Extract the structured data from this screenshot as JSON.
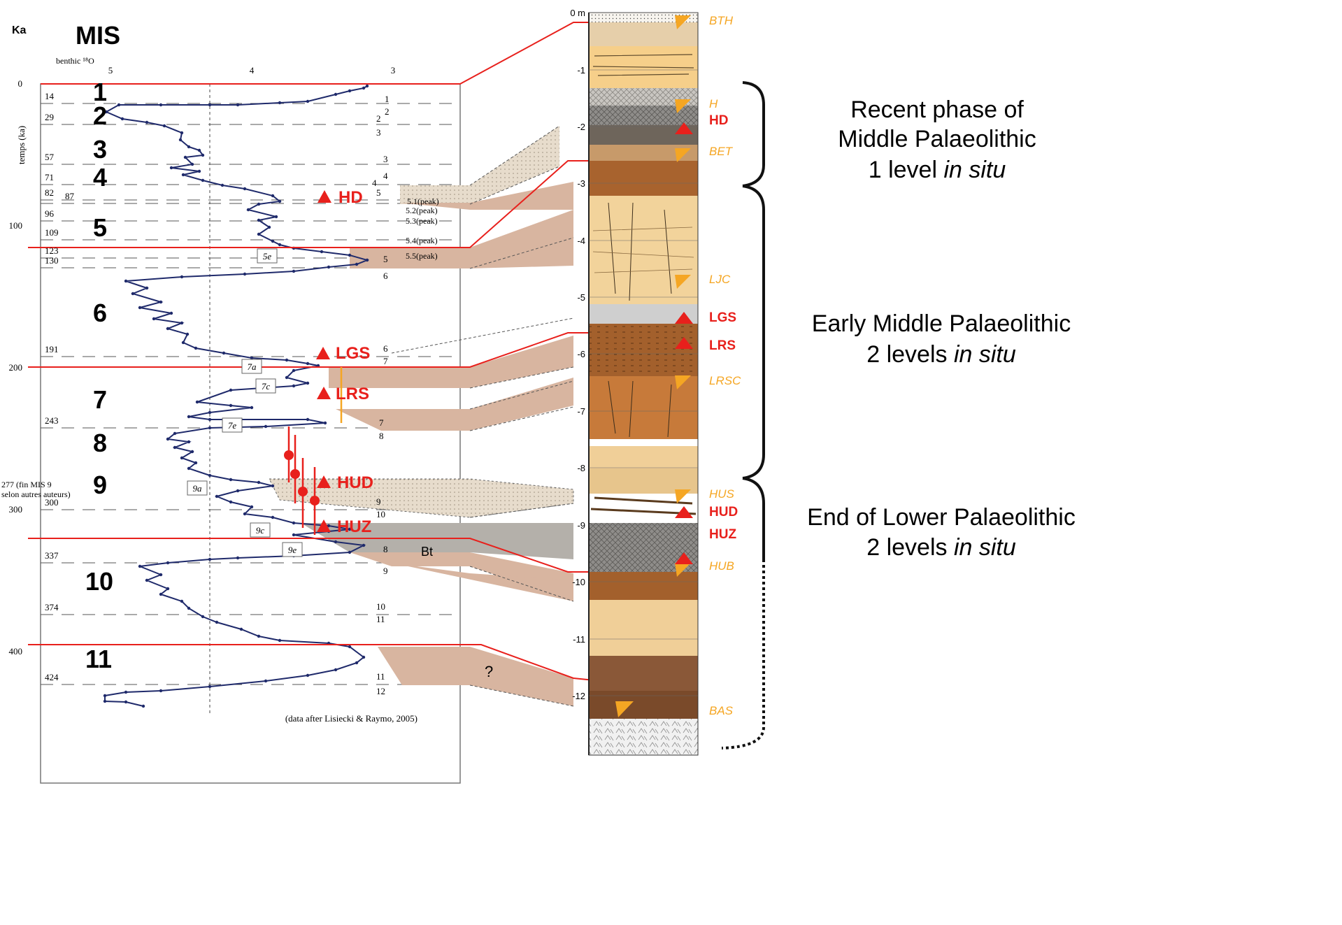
{
  "left_panel": {
    "ka_label": "Ka",
    "mis_title": "MIS",
    "axis_top_label": "benthic ¹⁸O",
    "top_ticks": [
      "5",
      "4",
      "3"
    ],
    "y_axis_label": "temps (ka)",
    "y_ticks": [
      "0",
      "100",
      "200",
      "300",
      "400"
    ],
    "credit": "(data after Lisiecki & Raymo, 2005)",
    "boundary_ages": [
      "14",
      "29",
      "57",
      "71",
      "82",
      "87",
      "96",
      "109",
      "123",
      "130",
      "191",
      "243",
      "300",
      "337",
      "374",
      "424"
    ],
    "boundary_note_line1": "277 (fin MIS 9",
    "boundary_note_line2": "selon autres auteurs)",
    "mis_stages": [
      "1",
      "2",
      "3",
      "4",
      "5",
      "6",
      "7",
      "8",
      "9",
      "10",
      "11"
    ],
    "right_stage_labels": [
      "1",
      "2",
      "2",
      "3",
      "3",
      "4",
      "4",
      "5",
      "5.1(peak)",
      "5.2(peak)",
      "5.3(peak)",
      "5.4(peak)",
      "5.5(peak)",
      "5",
      "6",
      "6",
      "7",
      "7",
      "8",
      "8",
      "9",
      "9",
      "10",
      "10",
      "11",
      "11",
      "12"
    ],
    "substages": [
      "5e",
      "7a",
      "7c",
      "7e",
      "9a",
      "9c",
      "9e"
    ],
    "markers": [
      "HD",
      "LGS",
      "LRS",
      "HUD",
      "HUZ"
    ],
    "bt_label": "Bt",
    "question_mark": "?"
  },
  "section": {
    "depth_ticks": [
      "0 m",
      "-1",
      "-2",
      "-3",
      "-4",
      "-5",
      "-6",
      "-7",
      "-8",
      "-9",
      "-10",
      "-11",
      "-12"
    ],
    "unit_labels_orange": [
      "BTH",
      "H",
      "BET",
      "LJC",
      "LRSC",
      "HUS",
      "HUB",
      "BAS"
    ],
    "unit_labels_red": [
      "HD",
      "LGS",
      "LRS",
      "HUD",
      "HUZ"
    ]
  },
  "phases": [
    {
      "line1": "Recent phase of",
      "line2": "Middle Palaeolithic",
      "line3_plain": "1 level ",
      "line3_italic": "in situ"
    },
    {
      "line1": "Early Middle Palaeolithic",
      "line2_plain": "2 levels ",
      "line2_italic": "in situ"
    },
    {
      "line1": "End of Lower Palaeolithic",
      "line2_plain": "2 levels ",
      "line2_italic": "in situ"
    }
  ],
  "colors": {
    "curve": "#1f2a6b",
    "boundary": "#e8201c",
    "marker": "#e8201c",
    "unit_orange": "#f5a623",
    "band_tan": "#d8b5a0",
    "band_grey": "#b4b0aa",
    "loess": "#f2d39b",
    "soil": "#a8632e"
  }
}
